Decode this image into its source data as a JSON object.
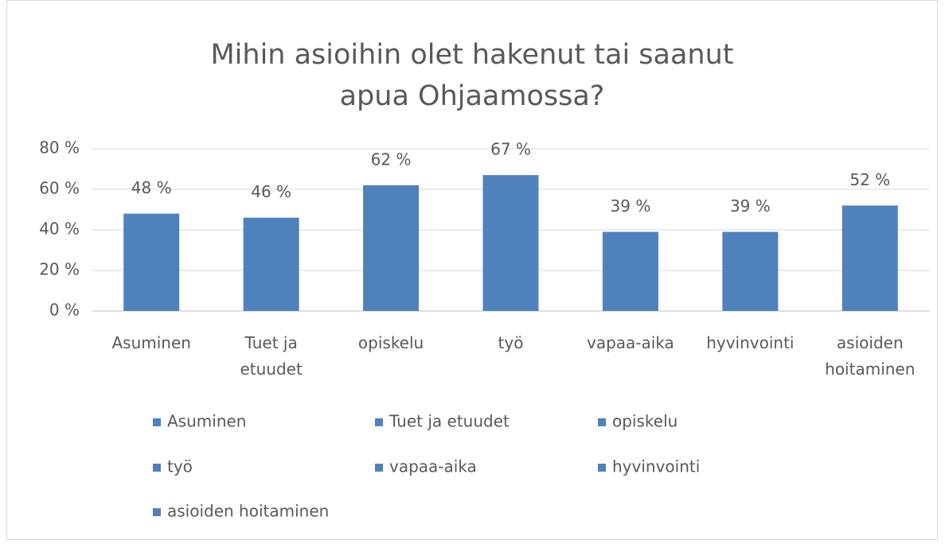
{
  "chart_data": {
    "type": "bar",
    "title": "Mihin asioihin olet hakenut tai saanut apua Ohjaamossa?",
    "categories": [
      "Asuminen",
      "Tuet ja etuudet",
      "opiskelu",
      "työ",
      "vapaa-aika",
      "hyvinvointi",
      "asioiden hoitaminen"
    ],
    "values": [
      48,
      46,
      62,
      67,
      39,
      39,
      52
    ],
    "value_labels": [
      "48 %",
      "46 %",
      "62 %",
      "67 %",
      "39 %",
      "39 %",
      "52 %"
    ],
    "color": "#4f81bd",
    "ylim": [
      0,
      80
    ],
    "yticks": [
      {
        "value": 0,
        "label": "0 %"
      },
      {
        "value": 20,
        "label": "20 %"
      },
      {
        "value": 40,
        "label": "40 %"
      },
      {
        "value": 60,
        "label": "60 %"
      },
      {
        "value": 80,
        "label": "80 %"
      }
    ],
    "grid": true,
    "legend": "bottom"
  }
}
